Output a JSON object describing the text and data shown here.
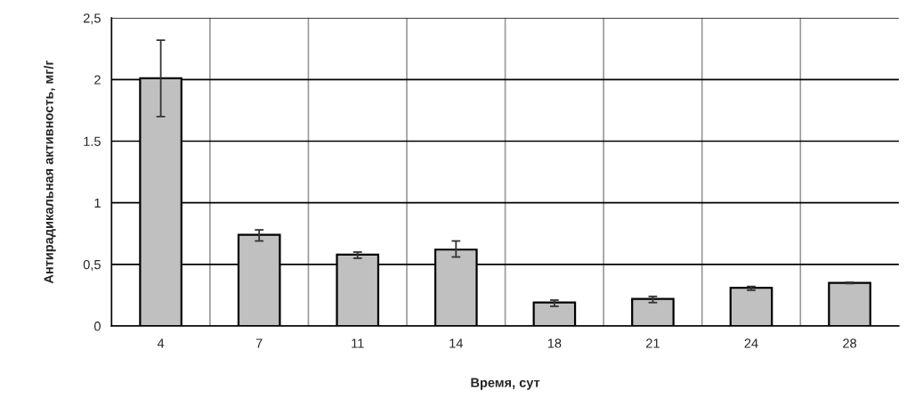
{
  "chart_data": {
    "type": "bar",
    "xlabel": "Время, сут",
    "ylabel": "Антирадикальная активность, мг/г",
    "categories": [
      "4",
      "7",
      "11",
      "14",
      "18",
      "21",
      "24",
      "28"
    ],
    "values": [
      2.01,
      0.74,
      0.58,
      0.62,
      0.19,
      0.22,
      0.31,
      0.35
    ],
    "errors": [
      [
        1.7,
        2.32
      ],
      [
        0.69,
        0.78
      ],
      [
        0.55,
        0.6
      ],
      [
        0.56,
        0.69
      ],
      [
        0.16,
        0.21
      ],
      [
        0.19,
        0.24
      ],
      [
        0.29,
        0.32
      ],
      [
        0.345,
        0.355
      ]
    ],
    "color": "#c0c0c0",
    "ylim": [
      0,
      2.5
    ],
    "yticks": [
      0,
      {
        "value": 0.5,
        "label": "0,5"
      },
      1,
      {
        "value": 1.5,
        "label": "1.5"
      },
      2,
      {
        "value": 2.5,
        "label": "2,5"
      }
    ],
    "grid": true
  }
}
